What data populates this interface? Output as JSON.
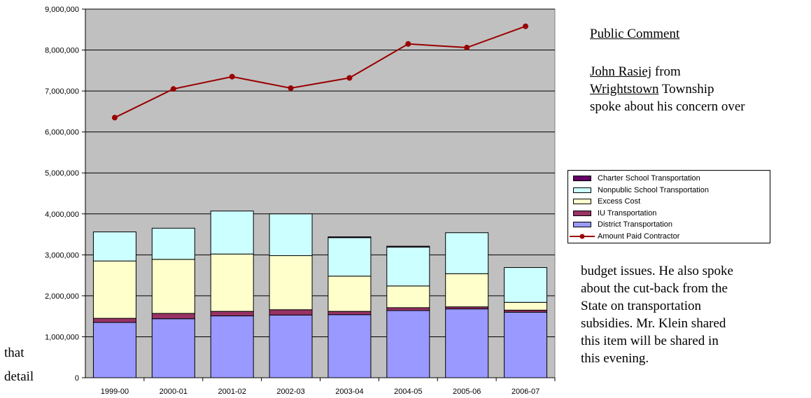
{
  "chart_data": {
    "type": "bar",
    "categories": [
      "1999-00",
      "2000-01",
      "2001-02",
      "2002-03",
      "2003-04",
      "2004-05",
      "2005-06",
      "2006-07"
    ],
    "series": [
      {
        "name": "District Transportation",
        "type": "stacked-bar",
        "color": "#9999ff",
        "values": [
          1350000,
          1440000,
          1510000,
          1530000,
          1540000,
          1640000,
          1680000,
          1600000
        ]
      },
      {
        "name": "IU Transportation",
        "type": "stacked-bar",
        "color": "#993366",
        "values": [
          100000,
          130000,
          110000,
          130000,
          80000,
          70000,
          50000,
          50000
        ]
      },
      {
        "name": "Excess Cost",
        "type": "stacked-bar",
        "color": "#ffffcc",
        "values": [
          1400000,
          1320000,
          1400000,
          1320000,
          860000,
          530000,
          810000,
          190000
        ]
      },
      {
        "name": "Nonpublic School Transportation",
        "type": "stacked-bar",
        "color": "#ccffff",
        "values": [
          710000,
          760000,
          1050000,
          1020000,
          940000,
          950000,
          1000000,
          850000
        ]
      },
      {
        "name": "Charter School Transportation",
        "type": "stacked-bar",
        "color": "#660066",
        "values": [
          0,
          0,
          0,
          0,
          20000,
          20000,
          0,
          0
        ]
      },
      {
        "name": "Amount Paid Contractor",
        "type": "line",
        "color": "#990000",
        "values": [
          6350000,
          7050000,
          7350000,
          7070000,
          7320000,
          8150000,
          8060000,
          8580000
        ]
      }
    ],
    "legend_order": [
      "Charter School Transportation",
      "Nonpublic School Transportation",
      "Excess Cost",
      "IU Transportation",
      "District Transportation",
      "Amount Paid Contractor"
    ],
    "y_ticks": [
      "0",
      "1,000,000",
      "2,000,000",
      "3,000,000",
      "4,000,000",
      "5,000,000",
      "6,000,000",
      "7,000,000",
      "8,000,000",
      "9,000,000"
    ],
    "ylim": [
      0,
      9000000
    ],
    "grid": true,
    "plot_background": "#c0c0c0",
    "legend_position": "right"
  },
  "text": {
    "heading": "Public Comment",
    "para1_name": "John Rasiej",
    "para1_l1_rest": " from",
    "para1_l2_ul": "Wrightstown",
    "para1_l2_rest": " Township",
    "para1_l3": "spoke about his concern over",
    "para2_l1": "budget issues.  He also spoke",
    "para2_l2": "about the cut-back from the",
    "para2_l3": "State on transportation",
    "para2_l4": "subsidies.  Mr. Klein shared",
    "para2_l5": "this item will be shared in",
    "para2_l6": "this evening.",
    "left_1": "that",
    "left_2": "detail"
  }
}
